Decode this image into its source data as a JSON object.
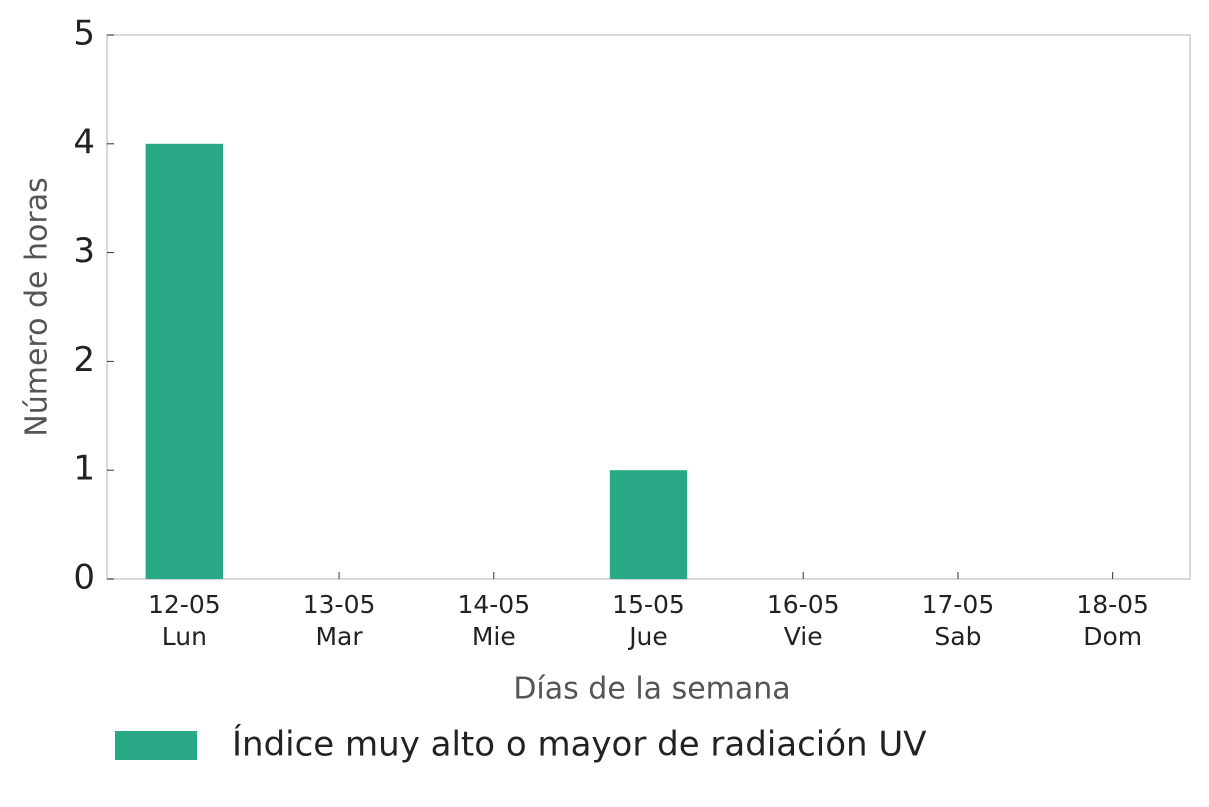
{
  "chart_data": {
    "type": "bar",
    "categories": [
      "12-05\nLun",
      "13-05\nMar",
      "14-05\nMie",
      "15-05\nJue",
      "16-05\nVie",
      "17-05\nSab",
      "18-05\nDom"
    ],
    "values": [
      4,
      0,
      0,
      1,
      0,
      0,
      0
    ],
    "color": "#29a886",
    "series_name": "Índice muy alto o mayor de radiación UV",
    "xlabel": "Días de la semana",
    "ylabel": "Número de horas",
    "ylim": [
      0,
      5
    ],
    "yticks": [
      0,
      1,
      2,
      3,
      4,
      5
    ],
    "grid": false,
    "legend": "bottom"
  }
}
